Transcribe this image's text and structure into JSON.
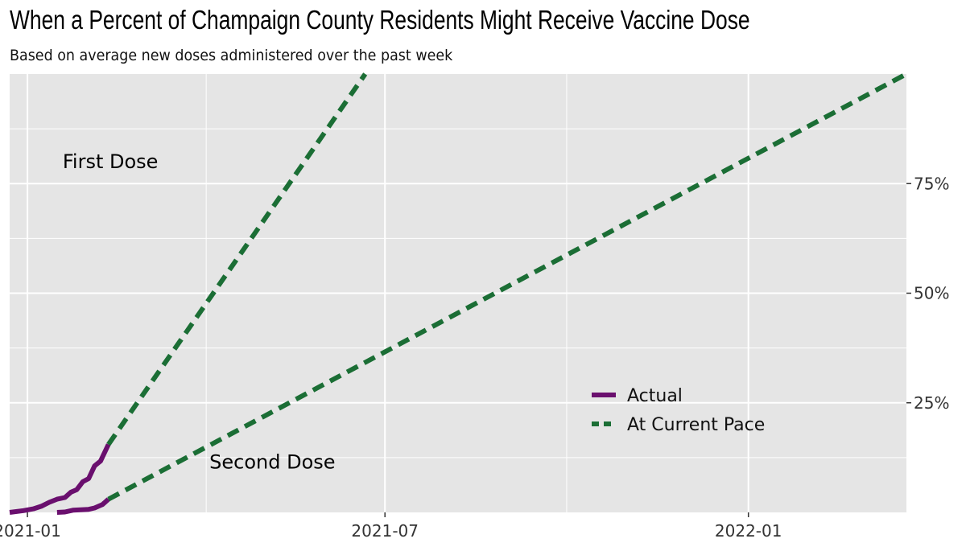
{
  "title": "When a Percent of Champaign County Residents Might Receive Vaccine Dose",
  "subtitle": "Based on average new doses administered over the past week",
  "chart_data": {
    "type": "line",
    "x_axis": {
      "kind": "date",
      "range": [
        "2020-12-23",
        "2022-03-22"
      ],
      "ticks": [
        {
          "value": "2021-01-01",
          "label": "2021-01"
        },
        {
          "value": "2021-07-01",
          "label": "2021-07"
        },
        {
          "value": "2022-01-01",
          "label": "2022-01"
        }
      ]
    },
    "y_axis": {
      "position": "right",
      "range": [
        0,
        100
      ],
      "ticks": [
        {
          "value": 25,
          "label": "25%"
        },
        {
          "value": 50,
          "label": "50%"
        },
        {
          "value": 75,
          "label": "75%"
        }
      ]
    },
    "grid": true,
    "series": [
      {
        "name": "Actual",
        "group": "First Dose",
        "style": "solid",
        "color": "#6a0f6e",
        "points": [
          [
            "2020-12-23",
            0
          ],
          [
            "2020-12-30",
            0.4
          ],
          [
            "2021-01-04",
            0.8
          ],
          [
            "2021-01-08",
            1.4
          ],
          [
            "2021-01-12",
            2.3
          ],
          [
            "2021-01-16",
            3.0
          ],
          [
            "2021-01-20",
            3.4
          ],
          [
            "2021-01-23",
            4.6
          ],
          [
            "2021-01-26",
            5.2
          ],
          [
            "2021-01-29",
            7.0
          ],
          [
            "2021-02-01",
            7.7
          ],
          [
            "2021-02-04",
            10.6
          ],
          [
            "2021-02-07",
            11.7
          ],
          [
            "2021-02-11",
            15.5
          ]
        ]
      },
      {
        "name": "Actual",
        "group": "Second Dose",
        "style": "solid",
        "color": "#6a0f6e",
        "points": [
          [
            "2021-01-16",
            0
          ],
          [
            "2021-01-20",
            0.1
          ],
          [
            "2021-01-24",
            0.5
          ],
          [
            "2021-01-28",
            0.6
          ],
          [
            "2021-02-01",
            0.7
          ],
          [
            "2021-02-04",
            1.0
          ],
          [
            "2021-02-08",
            1.8
          ],
          [
            "2021-02-11",
            3.0
          ]
        ]
      },
      {
        "name": "At Current Pace",
        "group": "First Dose",
        "style": "dashed",
        "color": "#1b6e35",
        "points": [
          [
            "2021-02-11",
            15.5
          ],
          [
            "2021-06-21",
            100
          ]
        ]
      },
      {
        "name": "At Current Pace",
        "group": "Second Dose",
        "style": "dashed",
        "color": "#1b6e35",
        "points": [
          [
            "2021-02-11",
            3.0
          ],
          [
            "2022-03-22",
            100
          ]
        ]
      }
    ],
    "annotations": [
      {
        "text": "First Dose",
        "x": "2021-02-12",
        "y": 80
      },
      {
        "text": "Second Dose",
        "x": "2021-05-05",
        "y": 11.5
      }
    ],
    "legend": {
      "placement": "bottom-right",
      "entries": [
        {
          "label": "Actual",
          "style": "solid",
          "color": "#6a0f6e"
        },
        {
          "label": "At Current Pace",
          "style": "dashed",
          "color": "#1b6e35"
        }
      ]
    },
    "panel_color": "#e5e5e5",
    "grid_color": "#ffffff"
  }
}
